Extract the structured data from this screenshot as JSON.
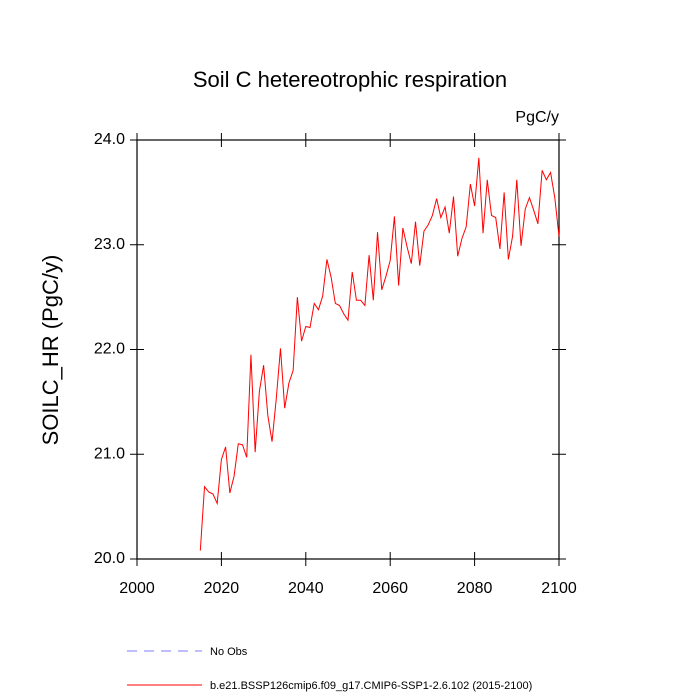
{
  "chart_data": {
    "type": "line",
    "title": "Soil C hetereotrophic respiration",
    "units": "PgC/y",
    "y_label": "SOILC_HR  (PgC/y)",
    "xlim": [
      2000,
      2100
    ],
    "xticks": [
      2000,
      2020,
      2040,
      2060,
      2080,
      2100
    ],
    "ylim": [
      20.0,
      24.0
    ],
    "yticks": [
      {
        "value": 20,
        "label": "20.0"
      },
      {
        "value": 21,
        "label": "21.0"
      },
      {
        "value": 22,
        "label": "22.0"
      },
      {
        "value": 23,
        "label": "23.0"
      },
      {
        "value": 24,
        "label": "24.0"
      }
    ],
    "x": [
      2015,
      2016,
      2017,
      2018,
      2019,
      2020,
      2021,
      2022,
      2023,
      2024,
      2025,
      2026,
      2027,
      2028,
      2029,
      2030,
      2031,
      2032,
      2033,
      2034,
      2035,
      2036,
      2037,
      2038,
      2039,
      2040,
      2041,
      2042,
      2043,
      2044,
      2045,
      2046,
      2047,
      2048,
      2049,
      2050,
      2051,
      2052,
      2053,
      2054,
      2055,
      2056,
      2057,
      2058,
      2059,
      2060,
      2061,
      2062,
      2063,
      2064,
      2065,
      2066,
      2067,
      2068,
      2069,
      2070,
      2071,
      2072,
      2073,
      2074,
      2075,
      2076,
      2077,
      2078,
      2079,
      2080,
      2081,
      2082,
      2083,
      2084,
      2085,
      2086,
      2087,
      2088,
      2089,
      2090,
      2091,
      2092,
      2093,
      2094,
      2095,
      2096,
      2097,
      2098,
      2099,
      2100
    ],
    "series": [
      {
        "name": "No Obs",
        "color": "#7f7fff",
        "dashed": true,
        "values": [
          null,
          null,
          null,
          null,
          null,
          null,
          null,
          null,
          null,
          null,
          null,
          null,
          null,
          null,
          null,
          null,
          null,
          null,
          null,
          null,
          null,
          null,
          null,
          null,
          null,
          null,
          null,
          null,
          null,
          null,
          null,
          null,
          null,
          null,
          null,
          null,
          null,
          null,
          null,
          null,
          null,
          null,
          null,
          null,
          null,
          null,
          null,
          null,
          null,
          null,
          null,
          null,
          null,
          null,
          null,
          null,
          null,
          null,
          null,
          null,
          null,
          null,
          null,
          null,
          null,
          null,
          null,
          null,
          null,
          null,
          null,
          null,
          null,
          null,
          null,
          null,
          null,
          null,
          null,
          null,
          null,
          null,
          null,
          null,
          null,
          null
        ]
      },
      {
        "name": "b.e21.BSSP126cmip6.f09_g17.CMIP6-SSP1-2.6.102 (2015-2100)",
        "color": "#ff0000",
        "dashed": false,
        "values": [
          20.08,
          20.69,
          20.64,
          20.62,
          20.53,
          20.95,
          21.07,
          20.63,
          20.79,
          21.1,
          21.09,
          20.97,
          21.95,
          21.02,
          21.6,
          21.85,
          21.37,
          21.12,
          21.53,
          22.01,
          21.44,
          21.68,
          21.8,
          22.5,
          22.08,
          22.22,
          22.21,
          22.44,
          22.38,
          22.51,
          22.86,
          22.69,
          22.44,
          22.42,
          22.34,
          22.28,
          22.74,
          22.47,
          22.47,
          22.42,
          22.9,
          22.47,
          23.12,
          22.57,
          22.7,
          22.85,
          23.27,
          22.61,
          23.16,
          22.98,
          22.82,
          23.22,
          22.8,
          23.13,
          23.19,
          23.28,
          23.44,
          23.26,
          23.36,
          23.11,
          23.46,
          22.89,
          23.06,
          23.17,
          23.58,
          23.37,
          23.83,
          23.11,
          23.62,
          23.28,
          23.26,
          22.96,
          23.5,
          22.86,
          23.08,
          23.62,
          22.99,
          23.34,
          23.45,
          23.33,
          23.2,
          23.71,
          23.62,
          23.69,
          23.45,
          23.08
        ]
      }
    ]
  }
}
